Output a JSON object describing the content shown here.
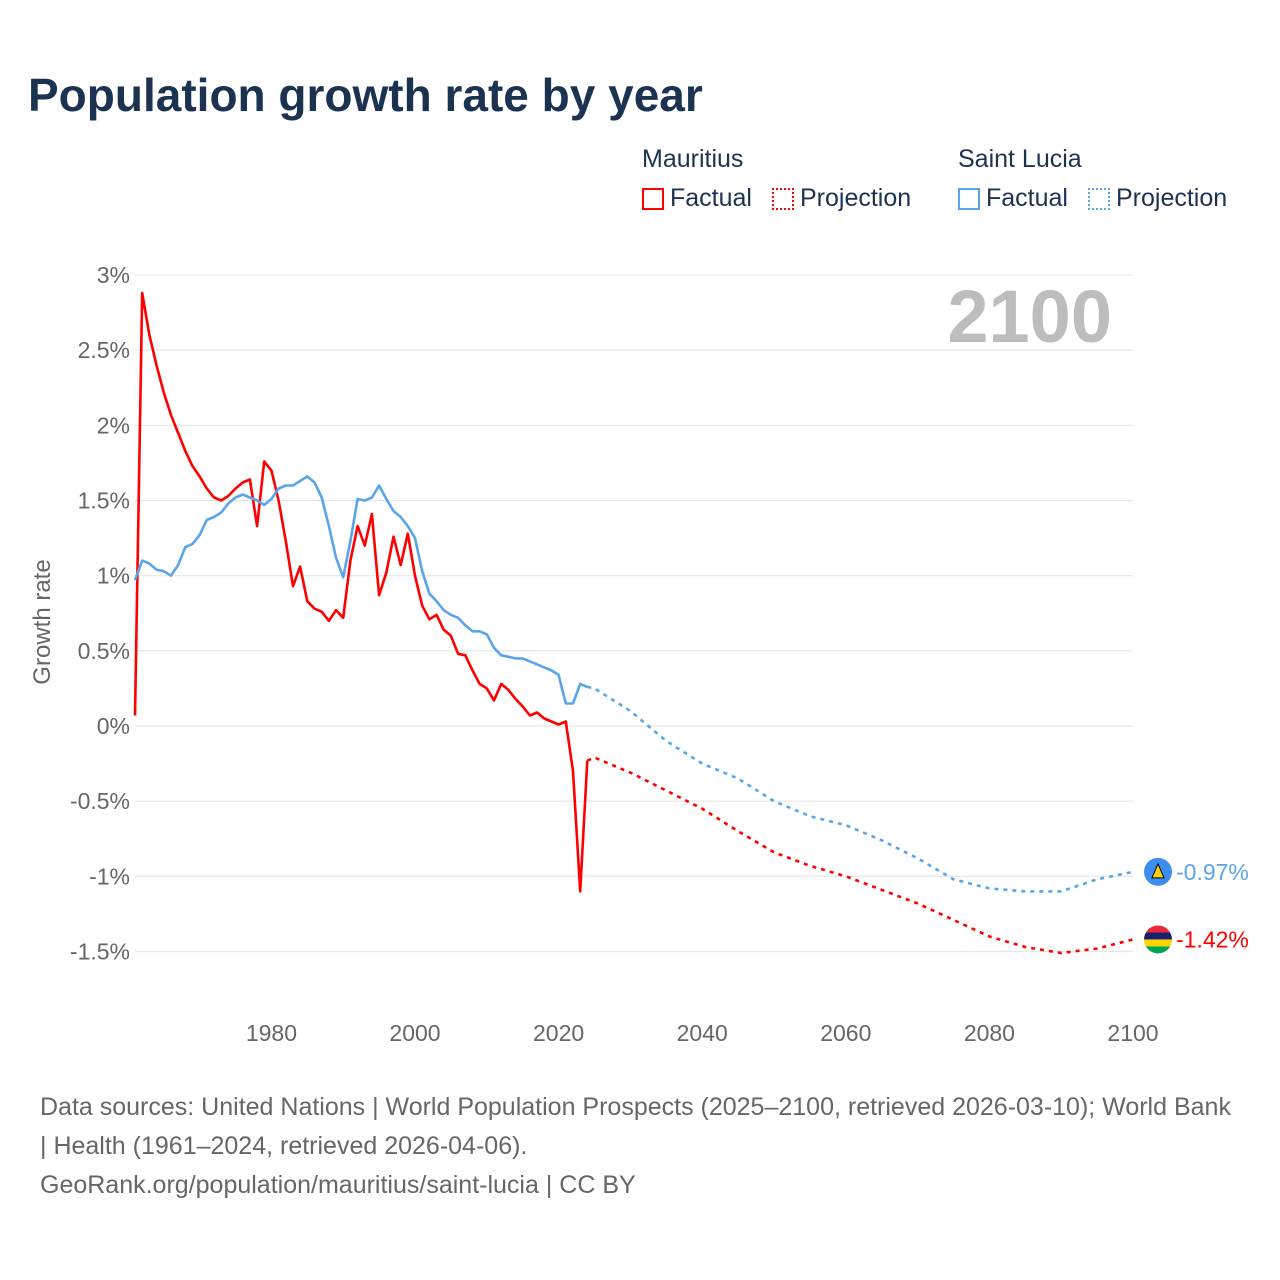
{
  "title": "Population growth rate by year",
  "legend": {
    "groups": [
      {
        "name": "Mauritius",
        "factual": "Factual",
        "projection": "Projection",
        "color": "#ff0000"
      },
      {
        "name": "Saint Lucia",
        "factual": "Factual",
        "projection": "Projection",
        "color": "#5aa5ea"
      }
    ]
  },
  "year_watermark": "2100",
  "footer": {
    "sources": "Data sources: United Nations | World Population Prospects (2025–2100, retrieved 2026-03-10); World Bank | Health (1961–2024, retrieved 2026-04-06).",
    "credit": "GeoRank.org/population/mauritius/saint-lucia | CC BY"
  },
  "chart_data": {
    "type": "line",
    "title": "Population growth rate by year",
    "xlabel": "",
    "ylabel": "Growth rate",
    "xlim": [
      1961,
      2100
    ],
    "ylim": [
      -1.75,
      3
    ],
    "x_ticks": [
      1980,
      2000,
      2020,
      2040,
      2060,
      2080,
      2100
    ],
    "y_ticks": [
      3,
      2.5,
      2,
      1.5,
      1,
      0.5,
      0,
      -0.5,
      -1,
      -1.5
    ],
    "y_tick_labels": [
      "3%",
      "2.5%",
      "2%",
      "1.5%",
      "1%",
      "0.5%",
      "0%",
      "-0.5%",
      "-1%",
      "-1.5%"
    ],
    "grid": true,
    "series": [
      {
        "name": "Mauritius",
        "color": "#ff0000",
        "end_label": "-1.42%",
        "factual": {
          "x_start": 1961,
          "values": [
            0.07,
            2.88,
            2.6,
            2.4,
            2.22,
            2.07,
            1.95,
            1.83,
            1.73,
            1.66,
            1.58,
            1.52,
            1.5,
            1.53,
            1.58,
            1.62,
            1.64,
            1.33,
            1.76,
            1.7,
            1.5,
            1.23,
            0.93,
            1.06,
            0.83,
            0.78,
            0.76,
            0.7,
            0.77,
            0.72,
            1.1,
            1.33,
            1.2,
            1.41,
            0.87,
            1.02,
            1.26,
            1.07,
            1.28,
            1.0,
            0.8,
            0.71,
            0.74,
            0.64,
            0.6,
            0.48,
            0.47,
            0.37,
            0.28,
            0.25,
            0.17,
            0.28,
            0.24,
            0.18,
            0.13,
            0.07,
            0.09,
            0.05,
            0.03,
            0.01,
            0.03,
            -0.3,
            -1.1,
            -0.23
          ]
        },
        "projection": {
          "x": [
            2024,
            2025,
            2030,
            2035,
            2040,
            2045,
            2050,
            2055,
            2060,
            2065,
            2070,
            2075,
            2080,
            2085,
            2090,
            2095,
            2100
          ],
          "values": [
            -0.23,
            -0.21,
            -0.31,
            -0.43,
            -0.55,
            -0.7,
            -0.84,
            -0.93,
            -1.0,
            -1.09,
            -1.18,
            -1.29,
            -1.4,
            -1.47,
            -1.51,
            -1.48,
            -1.42
          ]
        }
      },
      {
        "name": "Saint Lucia",
        "color": "#5aa5ea",
        "end_label": "-0.97%",
        "factual": {
          "x_start": 1961,
          "values": [
            0.97,
            1.1,
            1.08,
            1.04,
            1.03,
            1.0,
            1.07,
            1.19,
            1.21,
            1.27,
            1.37,
            1.39,
            1.42,
            1.48,
            1.52,
            1.54,
            1.52,
            1.5,
            1.47,
            1.51,
            1.58,
            1.6,
            1.6,
            1.63,
            1.66,
            1.62,
            1.52,
            1.33,
            1.12,
            0.99,
            1.23,
            1.51,
            1.5,
            1.52,
            1.6,
            1.51,
            1.43,
            1.39,
            1.33,
            1.25,
            1.03,
            0.88,
            0.83,
            0.77,
            0.74,
            0.72,
            0.67,
            0.63,
            0.63,
            0.61,
            0.52,
            0.47,
            0.46,
            0.45,
            0.45,
            0.43,
            0.41,
            0.39,
            0.37,
            0.34,
            0.15,
            0.15,
            0.28,
            0.26
          ]
        },
        "projection": {
          "x": [
            2024,
            2025,
            2030,
            2035,
            2040,
            2045,
            2050,
            2055,
            2060,
            2065,
            2070,
            2075,
            2080,
            2085,
            2090,
            2095,
            2100
          ],
          "values": [
            0.26,
            0.25,
            0.1,
            -0.1,
            -0.25,
            -0.35,
            -0.5,
            -0.6,
            -0.66,
            -0.76,
            -0.88,
            -1.02,
            -1.08,
            -1.1,
            -1.1,
            -1.02,
            -0.97
          ]
        }
      }
    ]
  }
}
